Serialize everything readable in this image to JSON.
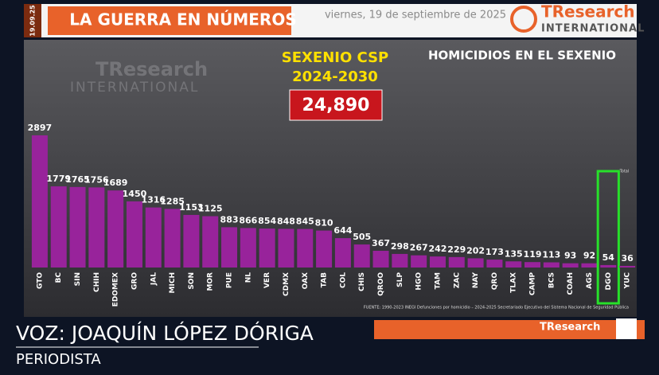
{
  "header": {
    "date_stamp": "19.09.25",
    "title": "LA GUERRA EN NÚMEROS",
    "date": "viernes, 19 de septiembre de 2025",
    "logo_name": "TResearch",
    "logo_sub": "INTERNATIONAL"
  },
  "chart_data": {
    "type": "bar",
    "title": "SEXENIO CSP",
    "subtitle": "2024-2030",
    "total": "24,890",
    "panel_title": "HOMICIDIOS EN EL SEXENIO",
    "total_note": "Total",
    "source": "FUENTE: 1990-2023 INEGI Defunciones por homicidio – 2024-2025 Secretariado Ejecutivo del Sistema Nacional de Seguridad Pública",
    "categories": [
      "GTO",
      "BC",
      "SIN",
      "CHIH",
      "EDOMEX",
      "GRO",
      "JAL",
      "MICH",
      "SON",
      "MOR",
      "PUE",
      "NL",
      "VER",
      "CDMX",
      "OAX",
      "TAB",
      "COL",
      "CHIS",
      "QROO",
      "SLP",
      "HGO",
      "TAM",
      "ZAC",
      "NAY",
      "QRO",
      "TLAX",
      "CAMP",
      "BCS",
      "COAH",
      "AGS",
      "DGO",
      "YUC"
    ],
    "values": [
      2897,
      1779,
      1765,
      1756,
      1689,
      1450,
      1316,
      1285,
      1153,
      1125,
      883,
      866,
      854,
      848,
      845,
      810,
      644,
      505,
      367,
      298,
      267,
      242,
      229,
      202,
      173,
      135,
      119,
      113,
      93,
      92,
      54,
      36
    ],
    "color": "#98239b",
    "highlight": "DGO",
    "highlight_color": "#27e02a"
  },
  "caption": {
    "speaker": "VOZ: JOAQUÍN LÓPEZ DÓRIGA",
    "role": "PERIODISTA"
  }
}
